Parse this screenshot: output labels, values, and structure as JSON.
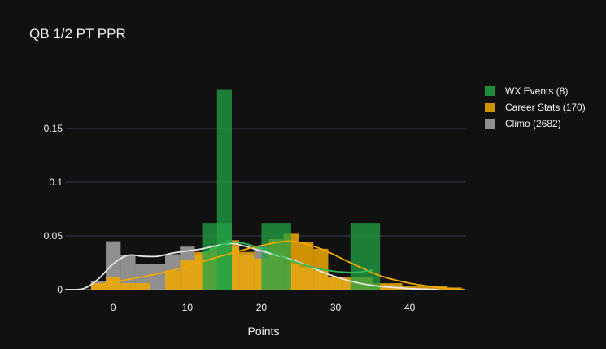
{
  "chart_data": {
    "type": "bar",
    "title": "QB 1/2 PT PPR",
    "xlabel": "Points",
    "ylabel": "",
    "xlim": [
      -6.5,
      47.5
    ],
    "ylim": [
      0,
      0.197
    ],
    "xticks": [
      0,
      10,
      20,
      30,
      40
    ],
    "yticks": [
      0.05,
      0.1,
      0.15
    ],
    "ytick_labels": [
      "0.05",
      "0.1",
      "0.15"
    ],
    "grid": true,
    "legend_position": "top-right",
    "series": [
      {
        "name": "Climo (2682)",
        "kind": "histogram",
        "color": "#a6a6a6",
        "bin_width": 2,
        "bins": [
          {
            "x0": -3,
            "y": 0.008
          },
          {
            "x0": -1,
            "y": 0.045
          },
          {
            "x0": 1,
            "y": 0.032
          },
          {
            "x0": 3,
            "y": 0.024
          },
          {
            "x0": 5,
            "y": 0.024
          },
          {
            "x0": 7,
            "y": 0.033
          },
          {
            "x0": 9,
            "y": 0.04
          },
          {
            "x0": 11,
            "y": 0.032
          },
          {
            "x0": 13,
            "y": 0.035
          },
          {
            "x0": 15,
            "y": 0.04
          },
          {
            "x0": 17,
            "y": 0.032
          },
          {
            "x0": 19,
            "y": 0.04
          },
          {
            "x0": 21,
            "y": 0.035
          },
          {
            "x0": 23,
            "y": 0.024
          },
          {
            "x0": 25,
            "y": 0.02
          },
          {
            "x0": 27,
            "y": 0.018
          },
          {
            "x0": 29,
            "y": 0.012
          },
          {
            "x0": 31,
            "y": 0.009
          },
          {
            "x0": 33,
            "y": 0.006
          },
          {
            "x0": 35,
            "y": 0.004
          },
          {
            "x0": 37,
            "y": 0.003
          },
          {
            "x0": 39,
            "y": 0.002
          },
          {
            "x0": 41,
            "y": 0.001
          }
        ],
        "kde": [
          [
            -6.5,
            0.0
          ],
          [
            -4,
            0.001
          ],
          [
            -2,
            0.01
          ],
          [
            0,
            0.024
          ],
          [
            2,
            0.032
          ],
          [
            4,
            0.031
          ],
          [
            6,
            0.031
          ],
          [
            8,
            0.034
          ],
          [
            10,
            0.036
          ],
          [
            12,
            0.038
          ],
          [
            14,
            0.041
          ],
          [
            16,
            0.043
          ],
          [
            18,
            0.04
          ],
          [
            20,
            0.036
          ],
          [
            22,
            0.032
          ],
          [
            24,
            0.028
          ],
          [
            26,
            0.023
          ],
          [
            28,
            0.017
          ],
          [
            30,
            0.012
          ],
          [
            32,
            0.008
          ],
          [
            34,
            0.005
          ],
          [
            36,
            0.003
          ],
          [
            38,
            0.002
          ],
          [
            40,
            0.001
          ],
          [
            42,
            0.0005
          ],
          [
            44,
            0.0
          ]
        ]
      },
      {
        "name": "Career Stats (170)",
        "kind": "histogram",
        "color": "#f0a800",
        "bin_width": 2,
        "bins": [
          {
            "x0": -3,
            "y": 0.006
          },
          {
            "x0": -1,
            "y": 0.012
          },
          {
            "x0": 1,
            "y": 0.006
          },
          {
            "x0": 3,
            "y": 0.006
          },
          {
            "x0": 7,
            "y": 0.018
          },
          {
            "x0": 9,
            "y": 0.028
          },
          {
            "x0": 11,
            "y": 0.035
          },
          {
            "x0": 13,
            "y": 0.04
          },
          {
            "x0": 15,
            "y": 0.046
          },
          {
            "x0": 17,
            "y": 0.035
          },
          {
            "x0": 19,
            "y": 0.029
          },
          {
            "x0": 21,
            "y": 0.047
          },
          {
            "x0": 23,
            "y": 0.052
          },
          {
            "x0": 25,
            "y": 0.044
          },
          {
            "x0": 27,
            "y": 0.038
          },
          {
            "x0": 29,
            "y": 0.012
          },
          {
            "x0": 31,
            "y": 0.012
          },
          {
            "x0": 33,
            "y": 0.012
          },
          {
            "x0": 35,
            "y": 0.006
          },
          {
            "x0": 37,
            "y": 0.006
          },
          {
            "x0": 39,
            "y": 0.003
          },
          {
            "x0": 41,
            "y": 0.003
          },
          {
            "x0": 43,
            "y": 0.003
          },
          {
            "x0": 45,
            "y": 0.002
          }
        ],
        "kde": [
          [
            -3,
            0.003
          ],
          [
            0,
            0.007
          ],
          [
            4,
            0.012
          ],
          [
            8,
            0.018
          ],
          [
            12,
            0.026
          ],
          [
            16,
            0.034
          ],
          [
            20,
            0.041
          ],
          [
            24,
            0.045
          ],
          [
            28,
            0.038
          ],
          [
            32,
            0.025
          ],
          [
            36,
            0.013
          ],
          [
            40,
            0.006
          ],
          [
            44,
            0.002
          ],
          [
            47.5,
            0.0
          ]
        ]
      },
      {
        "name": "WX Events (8)",
        "kind": "histogram",
        "color": "#21a345",
        "bin_width": 4,
        "bins": [
          {
            "x0": 12,
            "y": 0.062
          },
          {
            "x0": 20,
            "y": 0.062
          },
          {
            "x0": 32,
            "y": 0.062
          }
        ],
        "narrow_bins": [
          {
            "x0": 14,
            "x1": 16,
            "y": 0.186
          }
        ],
        "kde": [
          [
            12,
            0.033
          ],
          [
            16,
            0.044
          ],
          [
            20,
            0.038
          ],
          [
            24,
            0.027
          ],
          [
            28,
            0.019
          ],
          [
            32,
            0.016
          ],
          [
            35,
            0.018
          ]
        ]
      }
    ],
    "legend": [
      "WX Events (8)",
      "Career Stats (170)",
      "Climo (2682)"
    ]
  }
}
